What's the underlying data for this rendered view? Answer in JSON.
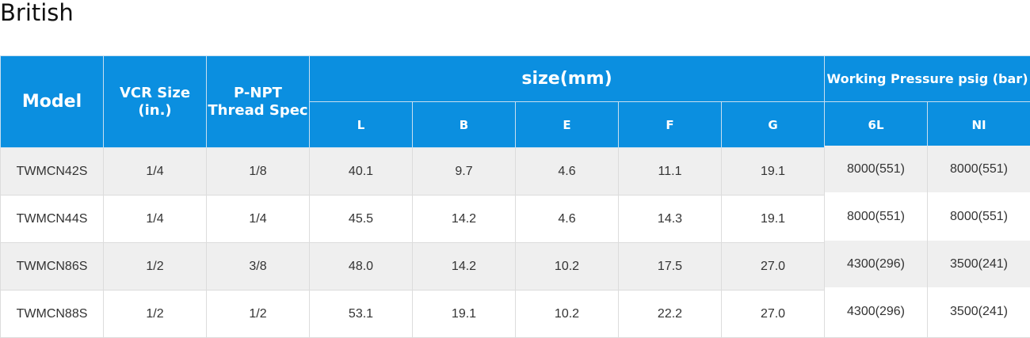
{
  "section_title": "British",
  "table": {
    "headers": {
      "model": "Model",
      "vcr_size_line1": "VCR Size",
      "vcr_size_line2": "(in.)",
      "npt_line1": "P-NPT",
      "npt_line2": "Thread Spec",
      "size_group": "size(mm)",
      "size_cols": [
        "L",
        "B",
        "E",
        "F",
        "G"
      ],
      "pressure_group": "Working Pressure psig (bar)",
      "pressure_cols": [
        "6L",
        "NI"
      ]
    },
    "rows": [
      {
        "model": "TWMCN42S",
        "vcr": "1/4",
        "npt": "1/8",
        "L": "40.1",
        "B": "9.7",
        "E": "4.6",
        "F": "11.1",
        "G": "19.1",
        "p6l": "8000(551)",
        "pni": "8000(551)"
      },
      {
        "model": "TWMCN44S",
        "vcr": "1/4",
        "npt": "1/4",
        "L": "45.5",
        "B": "14.2",
        "E": "4.6",
        "F": "14.3",
        "G": "19.1",
        "p6l": "8000(551)",
        "pni": "8000(551)"
      },
      {
        "model": "TWMCN86S",
        "vcr": "1/2",
        "npt": "3/8",
        "L": "48.0",
        "B": "14.2",
        "E": "10.2",
        "F": "17.5",
        "G": "27.0",
        "p6l": "4300(296)",
        "pni": "3500(241)"
      },
      {
        "model": "TWMCN88S",
        "vcr": "1/2",
        "npt": "1/2",
        "L": "53.1",
        "B": "19.1",
        "E": "10.2",
        "F": "22.2",
        "G": "27.0",
        "p6l": "4300(296)",
        "pni": "3500(241)"
      }
    ]
  },
  "colors": {
    "header_bg": "#0b8fe0",
    "header_text": "#ffffff",
    "row_alt_bg": "#efefef"
  }
}
